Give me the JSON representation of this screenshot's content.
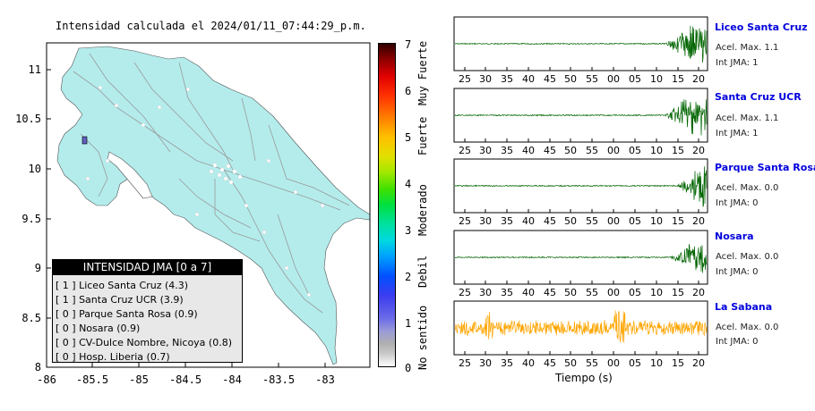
{
  "title": "Intensidad calculada el 2024/01/11_07:44:29_p.m.",
  "map": {
    "y_ticks": [
      "11",
      "10.5",
      "10",
      "9.5",
      "9",
      "8.5",
      "8"
    ],
    "x_ticks": [
      "-86",
      "-85.5",
      "-85",
      "-84.5",
      "-84",
      "-83.5",
      "-83"
    ],
    "land_color": "#b4ecec",
    "sea_color": "#ffffff"
  },
  "legend": {
    "header": "INTENSIDAD JMA [0 a 7]",
    "rows": [
      "[ 1 ]  Liceo Santa Cruz (4.3)",
      "[ 1 ]  Santa Cruz UCR (3.9)",
      "[ 0 ]  Parque Santa Rosa (0.9)",
      "[ 0 ]  Nosara (0.9)",
      "[ 0 ]  CV-Dulce Nombre, Nicoya (0.8)",
      "[ 0 ]  Hosp. Liberia (0.7)"
    ]
  },
  "colorbar": {
    "numbers": [
      "7",
      "6",
      "5",
      "4",
      "3",
      "2",
      "1",
      "0"
    ],
    "words": [
      "Muy Fuerte",
      "Fuerte",
      "Moderado",
      "Debil",
      "No sentido"
    ]
  },
  "stations": [
    {
      "name": "Liceo Santa Cruz",
      "acel": "Acel. Max. 1.1",
      "jma": "Int JMA: 1",
      "color": "#006400"
    },
    {
      "name": "Santa Cruz UCR",
      "acel": "Acel. Max. 1.1",
      "jma": "Int JMA: 1",
      "color": "#006400"
    },
    {
      "name": "Parque Santa Rosa",
      "acel": "Acel. Max. 0.0",
      "jma": "Int JMA: 0",
      "color": "#006400"
    },
    {
      "name": "Nosara",
      "acel": "Acel. Max. 0.0",
      "jma": "Int JMA: 0",
      "color": "#006400"
    },
    {
      "name": "La Sabana",
      "acel": "Acel. Max. 0.0",
      "jma": "Int JMA: 0",
      "color": "#ffa500"
    }
  ],
  "time_ticks": [
    "25",
    "30",
    "35",
    "40",
    "45",
    "50",
    "55",
    "00",
    "05",
    "10",
    "15",
    "20"
  ],
  "time_axis_label": "Tiempo (s)"
}
